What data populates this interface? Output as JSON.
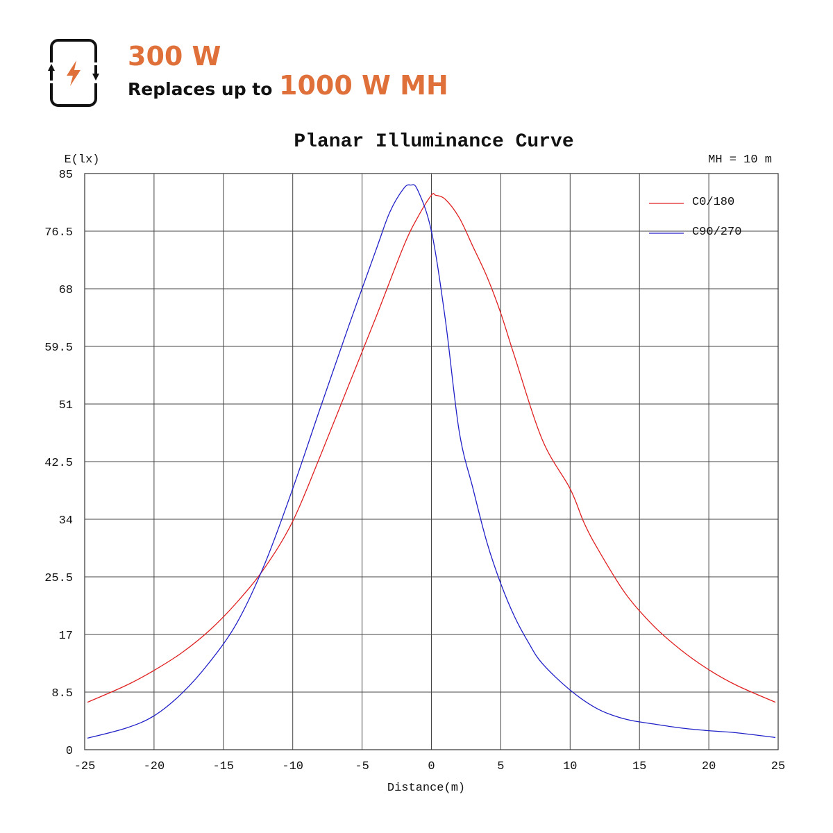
{
  "header": {
    "power": "300 W",
    "replaces_label": "Replaces up to",
    "replaces_value": "1000 W MH",
    "icon": "power-replacement-cycle-icon",
    "accent_color": "#e0703a"
  },
  "chart_data": {
    "type": "line",
    "title": "Planar Illuminance Curve",
    "ylabel": "E(lx)",
    "xlabel": "Distance(m)",
    "annotation": "MH = 10 m",
    "xlim": [
      -25,
      25
    ],
    "ylim": [
      0,
      85
    ],
    "xticks": [
      -25,
      -20,
      -15,
      -10,
      -5,
      0,
      5,
      10,
      15,
      20,
      25
    ],
    "yticks": [
      0,
      8.5,
      17,
      25.5,
      34,
      42.5,
      51,
      59.5,
      68,
      76.5,
      85
    ],
    "grid": true,
    "legend_position": "top-right",
    "series": [
      {
        "name": "C0/180",
        "color": "#e02020",
        "x": [
          -24.8,
          -22,
          -20,
          -18,
          -16,
          -14,
          -12,
          -10,
          -8,
          -6,
          -4,
          -2,
          -1,
          0,
          0.3,
          1,
          2,
          3,
          4,
          5,
          6,
          8,
          10,
          11,
          12,
          14,
          16,
          18,
          20,
          22,
          24.8
        ],
        "y": [
          7.0,
          9.5,
          11.7,
          14.3,
          17.6,
          21.8,
          26.9,
          33.7,
          43.4,
          53.6,
          63.8,
          74.3,
          78.5,
          81.8,
          81.8,
          81.2,
          78.5,
          74.2,
          69.8,
          64.4,
          58.0,
          45.7,
          38.5,
          33.5,
          29.6,
          23.0,
          18.3,
          14.7,
          11.8,
          9.5,
          7.0
        ]
      },
      {
        "name": "C90/270",
        "color": "#2020c8",
        "x": [
          -24.8,
          -22,
          -20,
          -18,
          -16,
          -14,
          -12,
          -10,
          -8,
          -6,
          -4,
          -3,
          -2,
          -1.5,
          -1,
          0,
          1,
          2,
          3,
          4,
          5,
          6,
          7,
          8,
          10,
          12,
          14,
          16,
          18,
          20,
          22,
          24.8
        ],
        "y": [
          1.7,
          3.2,
          5.0,
          8.3,
          12.9,
          18.8,
          27.5,
          38.5,
          50.5,
          62.3,
          73.7,
          79.3,
          82.8,
          83.3,
          82.6,
          76.5,
          63.5,
          47.0,
          38.5,
          30.6,
          24.5,
          19.6,
          15.8,
          12.7,
          8.8,
          6.0,
          4.5,
          3.8,
          3.2,
          2.8,
          2.5,
          1.8
        ]
      }
    ]
  }
}
